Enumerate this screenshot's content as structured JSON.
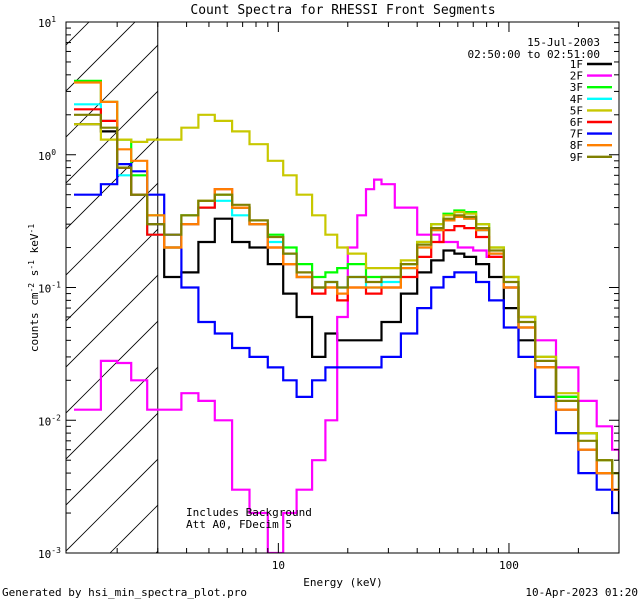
{
  "chart_data": {
    "type": "line",
    "title": "Count Spectra for RHESSI Front Segments",
    "xlabel": "Energy (keV)",
    "ylabel": "counts cm-2 s-1 keV-1",
    "xscale": "log",
    "yscale": "log",
    "xlim": [
      1.2,
      300
    ],
    "ylim": [
      0.001,
      10
    ],
    "x_ticks": [
      10,
      100
    ],
    "x_tick_labels": [
      "10",
      "100"
    ],
    "y_ticks": [
      0.001,
      0.01,
      0.1,
      1,
      10
    ],
    "y_tick_labels": [
      {
        "base": "10",
        "exp": "-3"
      },
      {
        "base": "10",
        "exp": "-2"
      },
      {
        "base": "10",
        "exp": "-1"
      },
      {
        "base": "10",
        "exp": "0"
      },
      {
        "base": "10",
        "exp": "1"
      }
    ],
    "shaded_region": {
      "x_from": 1.2,
      "x_to": 3.0,
      "style": "diagonal-hatch"
    },
    "legend": {
      "position": "top-right",
      "header": [
        "15-Jul-2003",
        "02:50:00 to 02:51:00"
      ]
    },
    "annotation": [
      "Includes Background",
      "Att A0, FDecim 5"
    ],
    "footer_left": "Generated by hsi_min_spectra_plot.pro",
    "footer_right": "10-Apr-2023 01:20",
    "series": [
      {
        "name": "1F",
        "color": "#000000",
        "x": [
          1.3,
          1.7,
          2.0,
          2.3,
          2.7,
          3.2,
          3.8,
          4.5,
          5.3,
          6.3,
          7.5,
          9,
          10.5,
          12,
          14,
          16,
          18,
          20,
          24,
          28,
          34,
          40,
          46,
          52,
          58,
          64,
          72,
          82,
          95,
          110,
          130,
          160,
          200,
          240,
          280,
          300
        ],
        "y": [
          1.7,
          1.5,
          0.8,
          0.5,
          0.3,
          0.12,
          0.13,
          0.22,
          0.33,
          0.22,
          0.2,
          0.15,
          0.09,
          0.06,
          0.03,
          0.045,
          0.04,
          0.04,
          0.04,
          0.055,
          0.09,
          0.13,
          0.16,
          0.19,
          0.18,
          0.17,
          0.15,
          0.12,
          0.07,
          0.04,
          0.025,
          0.015,
          0.008,
          0.004,
          0.003,
          0.002
        ]
      },
      {
        "name": "2F",
        "color": "#ff00ff",
        "x": [
          1.3,
          1.7,
          2.0,
          2.3,
          2.7,
          3.2,
          3.8,
          4.5,
          5.3,
          6.3,
          7.5,
          9,
          10.5,
          12,
          14,
          16,
          18,
          20,
          22,
          24,
          26,
          28,
          32,
          40,
          50,
          60,
          70,
          80,
          95,
          110,
          130,
          160,
          200,
          240,
          280,
          300
        ],
        "y": [
          0.012,
          0.028,
          0.027,
          0.02,
          0.012,
          0.012,
          0.016,
          0.014,
          0.01,
          0.003,
          0.002,
          0.001,
          0.002,
          0.003,
          0.005,
          0.01,
          0.06,
          0.2,
          0.35,
          0.55,
          0.65,
          0.6,
          0.4,
          0.25,
          0.22,
          0.2,
          0.19,
          0.17,
          0.1,
          0.06,
          0.04,
          0.025,
          0.014,
          0.009,
          0.006,
          0.005
        ]
      },
      {
        "name": "3F",
        "color": "#00ff00",
        "x": [
          1.3,
          1.7,
          2.0,
          2.3,
          2.7,
          3.2,
          3.8,
          4.5,
          5.3,
          6.3,
          7.5,
          9,
          10.5,
          12,
          14,
          16,
          18,
          20,
          24,
          28,
          34,
          40,
          46,
          52,
          58,
          64,
          72,
          82,
          95,
          110,
          130,
          160,
          200,
          240,
          280,
          300
        ],
        "y": [
          3.6,
          2.5,
          1.3,
          0.7,
          0.35,
          0.2,
          0.35,
          0.45,
          0.5,
          0.4,
          0.3,
          0.25,
          0.2,
          0.15,
          0.12,
          0.13,
          0.14,
          0.15,
          0.12,
          0.12,
          0.15,
          0.22,
          0.3,
          0.36,
          0.38,
          0.37,
          0.3,
          0.2,
          0.12,
          0.06,
          0.03,
          0.015,
          0.008,
          0.005,
          0.004,
          0.003
        ]
      },
      {
        "name": "4F",
        "color": "#00ffff",
        "x": [
          1.3,
          1.7,
          2.0,
          2.3,
          2.7,
          3.2,
          3.8,
          4.5,
          5.3,
          6.3,
          7.5,
          9,
          10.5,
          12,
          14,
          16,
          18,
          20,
          24,
          28,
          34,
          40,
          46,
          52,
          58,
          64,
          72,
          82,
          95,
          110,
          130,
          160,
          200,
          240,
          280,
          300
        ],
        "y": [
          2.4,
          1.8,
          0.7,
          0.5,
          0.25,
          0.2,
          0.3,
          0.4,
          0.45,
          0.35,
          0.3,
          0.22,
          0.18,
          0.12,
          0.1,
          0.11,
          0.1,
          0.12,
          0.1,
          0.11,
          0.14,
          0.2,
          0.27,
          0.32,
          0.34,
          0.33,
          0.27,
          0.18,
          0.1,
          0.05,
          0.025,
          0.012,
          0.006,
          0.004,
          0.003,
          0.003
        ]
      },
      {
        "name": "5F",
        "color": "#c8c800",
        "x": [
          1.3,
          1.7,
          2.0,
          2.3,
          2.7,
          3.2,
          3.8,
          4.5,
          5.3,
          6.3,
          7.5,
          9,
          10.5,
          12,
          14,
          16,
          18,
          20,
          24,
          28,
          34,
          40,
          46,
          52,
          58,
          64,
          72,
          82,
          95,
          110,
          130,
          160,
          200,
          240,
          280,
          300
        ],
        "y": [
          1.7,
          1.3,
          1.3,
          1.25,
          1.3,
          1.3,
          1.6,
          2.0,
          1.8,
          1.5,
          1.2,
          0.9,
          0.7,
          0.5,
          0.35,
          0.25,
          0.2,
          0.18,
          0.14,
          0.14,
          0.16,
          0.22,
          0.3,
          0.35,
          0.37,
          0.36,
          0.3,
          0.2,
          0.12,
          0.06,
          0.03,
          0.016,
          0.008,
          0.005,
          0.004,
          0.003
        ]
      },
      {
        "name": "6F",
        "color": "#ff0000",
        "x": [
          1.3,
          1.7,
          2.0,
          2.3,
          2.7,
          3.2,
          3.8,
          4.5,
          5.3,
          6.3,
          7.5,
          9,
          10.5,
          12,
          14,
          16,
          18,
          20,
          24,
          28,
          34,
          40,
          46,
          52,
          58,
          64,
          72,
          82,
          95,
          110,
          130,
          160,
          200,
          240,
          280,
          300
        ],
        "y": [
          2.2,
          1.8,
          0.8,
          0.5,
          0.25,
          0.2,
          0.3,
          0.4,
          0.55,
          0.4,
          0.3,
          0.2,
          0.15,
          0.12,
          0.09,
          0.1,
          0.08,
          0.1,
          0.09,
          0.1,
          0.12,
          0.17,
          0.22,
          0.27,
          0.29,
          0.28,
          0.24,
          0.17,
          0.1,
          0.05,
          0.025,
          0.012,
          0.006,
          0.004,
          0.003,
          0.003
        ]
      },
      {
        "name": "7F",
        "color": "#0000ff",
        "x": [
          1.3,
          1.7,
          2.0,
          2.3,
          2.7,
          3.2,
          3.8,
          4.5,
          5.3,
          6.3,
          7.5,
          9,
          10.5,
          12,
          14,
          16,
          18,
          20,
          24,
          28,
          34,
          40,
          46,
          52,
          58,
          64,
          72,
          82,
          95,
          110,
          130,
          160,
          200,
          240,
          280,
          300
        ],
        "y": [
          0.5,
          0.6,
          0.85,
          0.75,
          0.5,
          0.25,
          0.1,
          0.055,
          0.045,
          0.035,
          0.03,
          0.025,
          0.02,
          0.015,
          0.02,
          0.025,
          0.025,
          0.025,
          0.025,
          0.03,
          0.045,
          0.07,
          0.1,
          0.12,
          0.13,
          0.13,
          0.11,
          0.08,
          0.05,
          0.03,
          0.015,
          0.008,
          0.004,
          0.003,
          0.002,
          0.002
        ]
      },
      {
        "name": "8F",
        "color": "#ff8000",
        "x": [
          1.3,
          1.7,
          2.0,
          2.3,
          2.7,
          3.2,
          3.8,
          4.5,
          5.3,
          6.3,
          7.5,
          9,
          10.5,
          12,
          14,
          16,
          18,
          20,
          24,
          28,
          34,
          40,
          46,
          52,
          58,
          64,
          72,
          82,
          95,
          110,
          130,
          160,
          200,
          240,
          280,
          300
        ],
        "y": [
          3.5,
          2.5,
          1.1,
          0.9,
          0.35,
          0.2,
          0.3,
          0.45,
          0.55,
          0.4,
          0.3,
          0.2,
          0.15,
          0.12,
          0.1,
          0.1,
          0.09,
          0.1,
          0.1,
          0.1,
          0.14,
          0.2,
          0.27,
          0.32,
          0.34,
          0.33,
          0.27,
          0.18,
          0.1,
          0.05,
          0.025,
          0.012,
          0.006,
          0.004,
          0.003,
          0.003
        ]
      },
      {
        "name": "9F",
        "color": "#808000",
        "x": [
          1.3,
          1.7,
          2.0,
          2.3,
          2.7,
          3.2,
          3.8,
          4.5,
          5.3,
          6.3,
          7.5,
          9,
          10.5,
          12,
          14,
          16,
          18,
          20,
          24,
          28,
          34,
          40,
          46,
          52,
          58,
          64,
          72,
          82,
          95,
          110,
          130,
          160,
          200,
          240,
          280,
          300
        ],
        "y": [
          2.0,
          1.6,
          0.8,
          0.5,
          0.3,
          0.25,
          0.35,
          0.45,
          0.5,
          0.42,
          0.32,
          0.24,
          0.18,
          0.13,
          0.1,
          0.11,
          0.1,
          0.12,
          0.11,
          0.12,
          0.15,
          0.21,
          0.28,
          0.33,
          0.35,
          0.34,
          0.28,
          0.19,
          0.11,
          0.055,
          0.028,
          0.014,
          0.007,
          0.005,
          0.004,
          0.003
        ]
      }
    ]
  }
}
